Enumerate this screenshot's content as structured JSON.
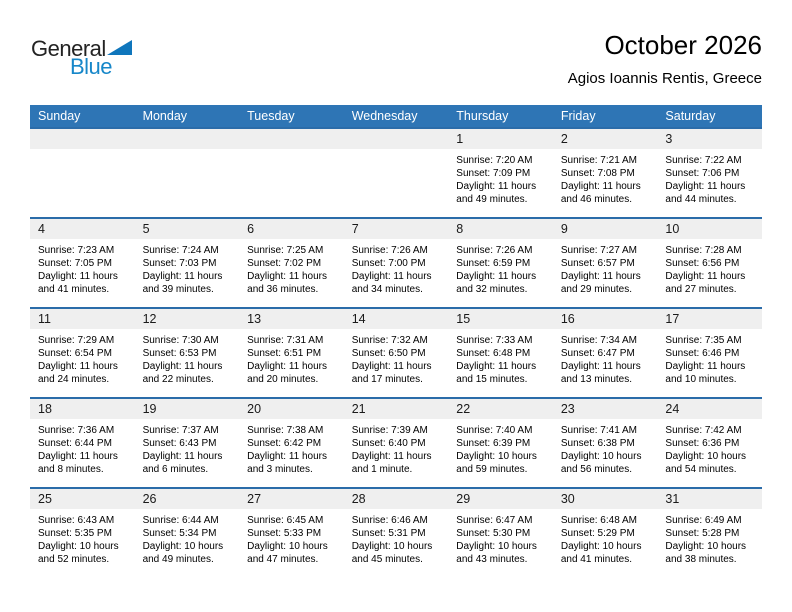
{
  "logo": {
    "line1": "General",
    "line2": "Blue"
  },
  "header": {
    "title": "October 2026",
    "subtitle": "Agios Ioannis Rentis, Greece"
  },
  "colors": {
    "header_blue": "#2e75b5",
    "separator_blue": "#2b6ca9",
    "day_band_gray": "#efefef",
    "logo_blue_text": "#1787c9",
    "logo_triangle": "#0f76bc"
  },
  "calendar": {
    "day_headers": [
      "Sunday",
      "Monday",
      "Tuesday",
      "Wednesday",
      "Thursday",
      "Friday",
      "Saturday"
    ],
    "weeks": [
      [
        null,
        null,
        null,
        null,
        {
          "day": "1",
          "sunrise": "Sunrise: 7:20 AM",
          "sunset": "Sunset: 7:09 PM",
          "daylight1": "Daylight: 11 hours",
          "daylight2": "and 49 minutes."
        },
        {
          "day": "2",
          "sunrise": "Sunrise: 7:21 AM",
          "sunset": "Sunset: 7:08 PM",
          "daylight1": "Daylight: 11 hours",
          "daylight2": "and 46 minutes."
        },
        {
          "day": "3",
          "sunrise": "Sunrise: 7:22 AM",
          "sunset": "Sunset: 7:06 PM",
          "daylight1": "Daylight: 11 hours",
          "daylight2": "and 44 minutes."
        }
      ],
      [
        {
          "day": "4",
          "sunrise": "Sunrise: 7:23 AM",
          "sunset": "Sunset: 7:05 PM",
          "daylight1": "Daylight: 11 hours",
          "daylight2": "and 41 minutes."
        },
        {
          "day": "5",
          "sunrise": "Sunrise: 7:24 AM",
          "sunset": "Sunset: 7:03 PM",
          "daylight1": "Daylight: 11 hours",
          "daylight2": "and 39 minutes."
        },
        {
          "day": "6",
          "sunrise": "Sunrise: 7:25 AM",
          "sunset": "Sunset: 7:02 PM",
          "daylight1": "Daylight: 11 hours",
          "daylight2": "and 36 minutes."
        },
        {
          "day": "7",
          "sunrise": "Sunrise: 7:26 AM",
          "sunset": "Sunset: 7:00 PM",
          "daylight1": "Daylight: 11 hours",
          "daylight2": "and 34 minutes."
        },
        {
          "day": "8",
          "sunrise": "Sunrise: 7:26 AM",
          "sunset": "Sunset: 6:59 PM",
          "daylight1": "Daylight: 11 hours",
          "daylight2": "and 32 minutes."
        },
        {
          "day": "9",
          "sunrise": "Sunrise: 7:27 AM",
          "sunset": "Sunset: 6:57 PM",
          "daylight1": "Daylight: 11 hours",
          "daylight2": "and 29 minutes."
        },
        {
          "day": "10",
          "sunrise": "Sunrise: 7:28 AM",
          "sunset": "Sunset: 6:56 PM",
          "daylight1": "Daylight: 11 hours",
          "daylight2": "and 27 minutes."
        }
      ],
      [
        {
          "day": "11",
          "sunrise": "Sunrise: 7:29 AM",
          "sunset": "Sunset: 6:54 PM",
          "daylight1": "Daylight: 11 hours",
          "daylight2": "and 24 minutes."
        },
        {
          "day": "12",
          "sunrise": "Sunrise: 7:30 AM",
          "sunset": "Sunset: 6:53 PM",
          "daylight1": "Daylight: 11 hours",
          "daylight2": "and 22 minutes."
        },
        {
          "day": "13",
          "sunrise": "Sunrise: 7:31 AM",
          "sunset": "Sunset: 6:51 PM",
          "daylight1": "Daylight: 11 hours",
          "daylight2": "and 20 minutes."
        },
        {
          "day": "14",
          "sunrise": "Sunrise: 7:32 AM",
          "sunset": "Sunset: 6:50 PM",
          "daylight1": "Daylight: 11 hours",
          "daylight2": "and 17 minutes."
        },
        {
          "day": "15",
          "sunrise": "Sunrise: 7:33 AM",
          "sunset": "Sunset: 6:48 PM",
          "daylight1": "Daylight: 11 hours",
          "daylight2": "and 15 minutes."
        },
        {
          "day": "16",
          "sunrise": "Sunrise: 7:34 AM",
          "sunset": "Sunset: 6:47 PM",
          "daylight1": "Daylight: 11 hours",
          "daylight2": "and 13 minutes."
        },
        {
          "day": "17",
          "sunrise": "Sunrise: 7:35 AM",
          "sunset": "Sunset: 6:46 PM",
          "daylight1": "Daylight: 11 hours",
          "daylight2": "and 10 minutes."
        }
      ],
      [
        {
          "day": "18",
          "sunrise": "Sunrise: 7:36 AM",
          "sunset": "Sunset: 6:44 PM",
          "daylight1": "Daylight: 11 hours",
          "daylight2": "and 8 minutes."
        },
        {
          "day": "19",
          "sunrise": "Sunrise: 7:37 AM",
          "sunset": "Sunset: 6:43 PM",
          "daylight1": "Daylight: 11 hours",
          "daylight2": "and 6 minutes."
        },
        {
          "day": "20",
          "sunrise": "Sunrise: 7:38 AM",
          "sunset": "Sunset: 6:42 PM",
          "daylight1": "Daylight: 11 hours",
          "daylight2": "and 3 minutes."
        },
        {
          "day": "21",
          "sunrise": "Sunrise: 7:39 AM",
          "sunset": "Sunset: 6:40 PM",
          "daylight1": "Daylight: 11 hours",
          "daylight2": "and 1 minute."
        },
        {
          "day": "22",
          "sunrise": "Sunrise: 7:40 AM",
          "sunset": "Sunset: 6:39 PM",
          "daylight1": "Daylight: 10 hours",
          "daylight2": "and 59 minutes."
        },
        {
          "day": "23",
          "sunrise": "Sunrise: 7:41 AM",
          "sunset": "Sunset: 6:38 PM",
          "daylight1": "Daylight: 10 hours",
          "daylight2": "and 56 minutes."
        },
        {
          "day": "24",
          "sunrise": "Sunrise: 7:42 AM",
          "sunset": "Sunset: 6:36 PM",
          "daylight1": "Daylight: 10 hours",
          "daylight2": "and 54 minutes."
        }
      ],
      [
        {
          "day": "25",
          "sunrise": "Sunrise: 6:43 AM",
          "sunset": "Sunset: 5:35 PM",
          "daylight1": "Daylight: 10 hours",
          "daylight2": "and 52 minutes."
        },
        {
          "day": "26",
          "sunrise": "Sunrise: 6:44 AM",
          "sunset": "Sunset: 5:34 PM",
          "daylight1": "Daylight: 10 hours",
          "daylight2": "and 49 minutes."
        },
        {
          "day": "27",
          "sunrise": "Sunrise: 6:45 AM",
          "sunset": "Sunset: 5:33 PM",
          "daylight1": "Daylight: 10 hours",
          "daylight2": "and 47 minutes."
        },
        {
          "day": "28",
          "sunrise": "Sunrise: 6:46 AM",
          "sunset": "Sunset: 5:31 PM",
          "daylight1": "Daylight: 10 hours",
          "daylight2": "and 45 minutes."
        },
        {
          "day": "29",
          "sunrise": "Sunrise: 6:47 AM",
          "sunset": "Sunset: 5:30 PM",
          "daylight1": "Daylight: 10 hours",
          "daylight2": "and 43 minutes."
        },
        {
          "day": "30",
          "sunrise": "Sunrise: 6:48 AM",
          "sunset": "Sunset: 5:29 PM",
          "daylight1": "Daylight: 10 hours",
          "daylight2": "and 41 minutes."
        },
        {
          "day": "31",
          "sunrise": "Sunrise: 6:49 AM",
          "sunset": "Sunset: 5:28 PM",
          "daylight1": "Daylight: 10 hours",
          "daylight2": "and 38 minutes."
        }
      ]
    ]
  }
}
